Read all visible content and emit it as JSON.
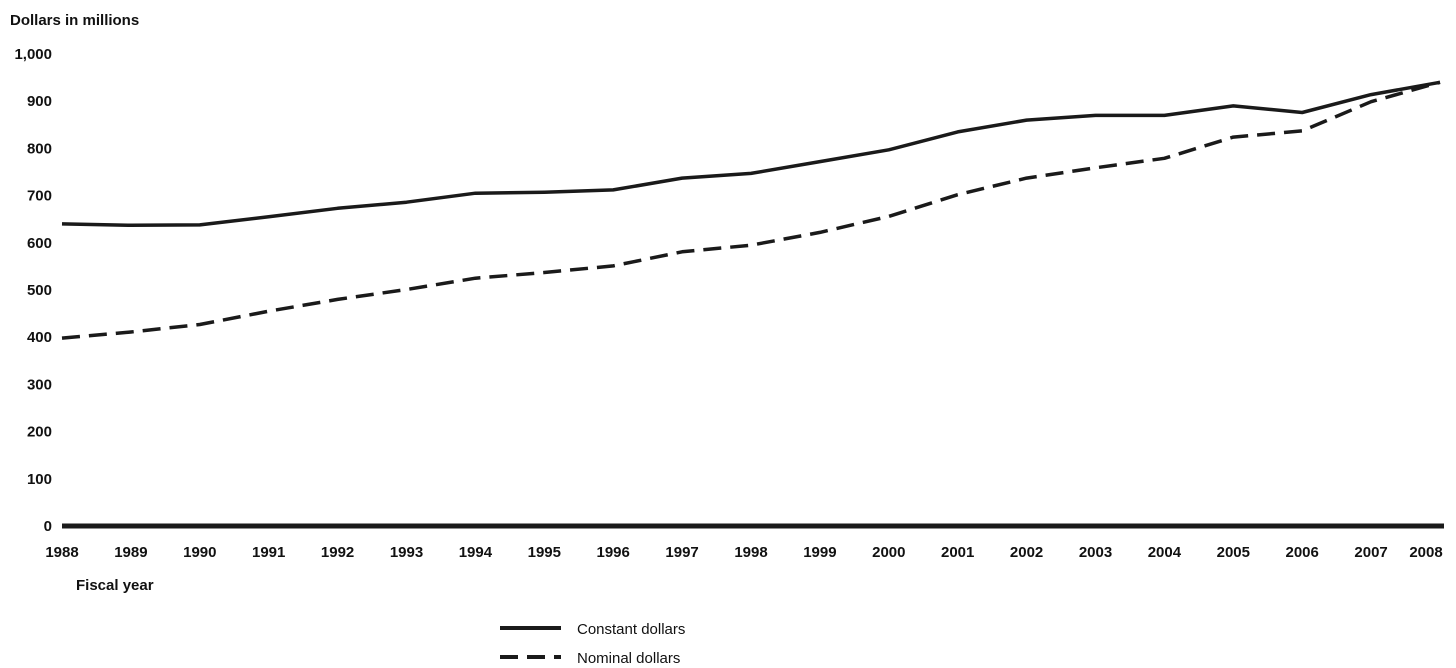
{
  "chart_data": {
    "type": "line",
    "ylabel": "Dollars in millions",
    "xlabel": "Fiscal year",
    "ylim": [
      0,
      1000
    ],
    "yticks": [
      0,
      100,
      200,
      300,
      400,
      500,
      600,
      700,
      800,
      900,
      1000
    ],
    "ytick_labels": [
      "0",
      "100",
      "200",
      "300",
      "400",
      "500",
      "600",
      "700",
      "800",
      "900",
      "1,000"
    ],
    "x": [
      1988,
      1989,
      1990,
      1991,
      1992,
      1993,
      1994,
      1995,
      1996,
      1997,
      1998,
      1999,
      2000,
      2001,
      2002,
      2003,
      2004,
      2005,
      2006,
      2007,
      2008
    ],
    "xtick_labels": [
      "1988",
      "1989",
      "1990",
      "1991",
      "1992",
      "1993",
      "1994",
      "1995",
      "1996",
      "1997",
      "1998",
      "1999",
      "2000",
      "2001",
      "2002",
      "2003",
      "2004",
      "2005",
      "2006",
      "2007",
      "2008"
    ],
    "series": [
      {
        "name": "Constant dollars",
        "style": "solid",
        "values": [
          640,
          637,
          638,
          655,
          673,
          686,
          705,
          707,
          712,
          737,
          747,
          772,
          797,
          835,
          860,
          870,
          870,
          890,
          876,
          914,
          940
        ]
      },
      {
        "name": "Nominal dollars",
        "style": "dashed",
        "values": [
          398,
          411,
          427,
          455,
          480,
          501,
          525,
          537,
          551,
          581,
          595,
          622,
          656,
          702,
          737,
          759,
          779,
          824,
          837,
          899,
          940
        ]
      }
    ],
    "grid": false,
    "legend_position": "bottom-center",
    "colors": {
      "line": "#1a1a1a",
      "axis": "#1a1a1a",
      "background": "#ffffff"
    }
  }
}
